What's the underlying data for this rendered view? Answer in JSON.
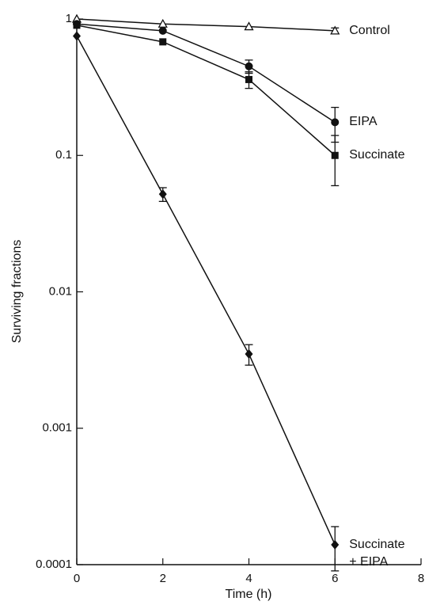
{
  "chart_data": {
    "type": "line",
    "x_label": "Time (h)",
    "y_label": "Surviving fractions",
    "xlim": [
      0,
      8
    ],
    "xticks": [
      0,
      2,
      4,
      6,
      8
    ],
    "ylim": [
      0.0001,
      1
    ],
    "yticks": [
      1,
      0.1,
      0.01,
      0.001,
      0.0001
    ],
    "y_scale": "log",
    "x": [
      0,
      2,
      4,
      6
    ],
    "series": [
      {
        "name": "Control",
        "color": "#111111",
        "marker": "triangle-open",
        "values": [
          1.0,
          0.92,
          0.88,
          0.82
        ],
        "errors": [
          null,
          null,
          null,
          0.04
        ]
      },
      {
        "name": "EIPA",
        "color": "#111111",
        "marker": "circle",
        "values": [
          0.92,
          0.82,
          0.45,
          0.175
        ],
        "errors": [
          null,
          null,
          0.05,
          0.05
        ]
      },
      {
        "name": "Succinate",
        "color": "#111111",
        "marker": "square",
        "values": [
          0.9,
          0.68,
          0.36,
          0.1
        ],
        "errors": [
          null,
          null,
          0.05,
          0.04
        ]
      },
      {
        "name": "Succinate + EIPA",
        "color": "#111111",
        "marker": "diamond",
        "values": [
          0.75,
          0.052,
          0.0035,
          0.00014
        ],
        "errors": [
          null,
          0.006,
          0.0006,
          5e-05
        ]
      }
    ]
  }
}
